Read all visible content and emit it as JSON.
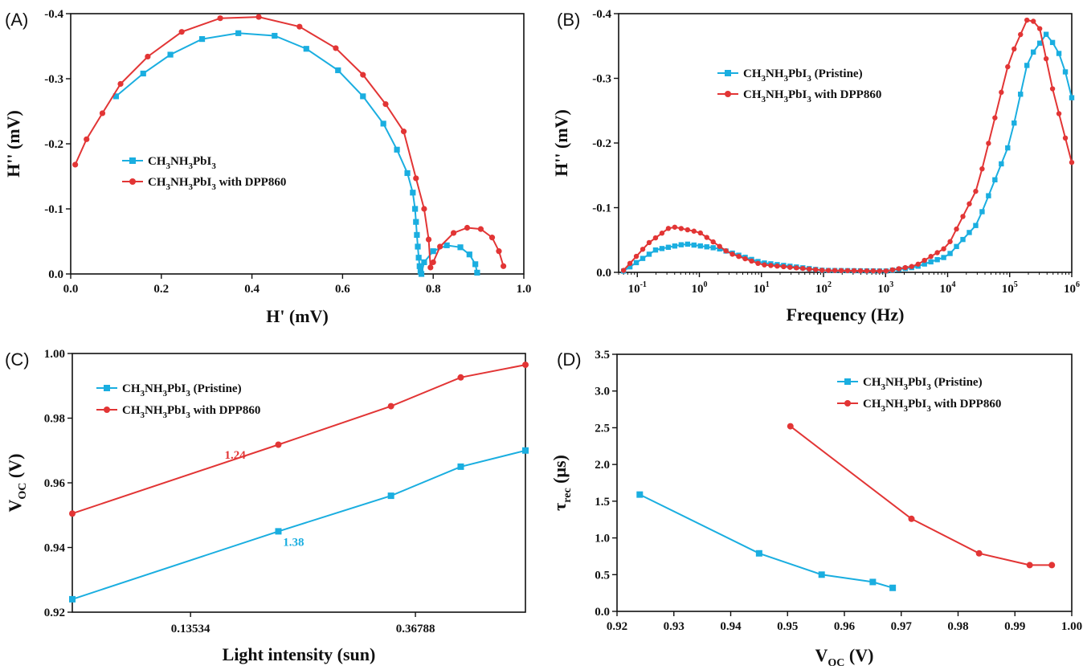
{
  "colors": {
    "pristine": "#1aaee0",
    "dpp": "#e23535"
  },
  "chart_data": [
    {
      "id": "A",
      "panel_label": "(A)",
      "type": "scatter",
      "xlabel": "H' (mV)",
      "ylabel": "H'' (mV)",
      "xlim": [
        0,
        1.0
      ],
      "ylim": [
        0,
        -0.4
      ],
      "xticks": [
        "0.0",
        "0.2",
        "0.4",
        "0.6",
        "0.8",
        "1.0"
      ],
      "yticks": [
        "0.0",
        "-0.1",
        "-0.2",
        "-0.3",
        "-0.4"
      ],
      "legend_position": "center-left",
      "series": [
        {
          "name": "CH3NH3PbI3",
          "legend_main": "CH",
          "legend_parts": [
            [
              "3",
              "NH"
            ],
            [
              "3",
              "PbI"
            ],
            [
              "3",
              ""
            ]
          ],
          "color": "#1aaee0",
          "marker": "square",
          "x": [
            0.1,
            0.16,
            0.22,
            0.29,
            0.37,
            0.45,
            0.52,
            0.59,
            0.645,
            0.69,
            0.72,
            0.743,
            0.755,
            0.76,
            0.762,
            0.764,
            0.766,
            0.768,
            0.77,
            0.772,
            0.774,
            0.78,
            0.8,
            0.83,
            0.86,
            0.88,
            0.893,
            0.897
          ],
          "y": [
            -0.273,
            -0.308,
            -0.337,
            -0.361,
            -0.37,
            -0.366,
            -0.346,
            -0.313,
            -0.273,
            -0.231,
            -0.191,
            -0.155,
            -0.125,
            -0.1,
            -0.08,
            -0.06,
            -0.042,
            -0.025,
            -0.012,
            -0.004,
            0.0,
            -0.018,
            -0.035,
            -0.044,
            -0.041,
            -0.03,
            -0.015,
            -0.002
          ]
        },
        {
          "name": "CH3NH3PbI3 with DPP860",
          "legend_main": "CH",
          "legend_parts": [
            [
              "3",
              "NH"
            ],
            [
              "3",
              "PbI"
            ],
            [
              "3",
              " with DPP860"
            ]
          ],
          "color": "#e23535",
          "marker": "circle",
          "x": [
            0.01,
            0.035,
            0.07,
            0.11,
            0.17,
            0.245,
            0.33,
            0.415,
            0.505,
            0.585,
            0.645,
            0.695,
            0.735,
            0.762,
            0.78,
            0.79,
            0.794,
            0.8,
            0.815,
            0.845,
            0.875,
            0.905,
            0.93,
            0.945,
            0.955
          ],
          "y": [
            -0.168,
            -0.207,
            -0.247,
            -0.292,
            -0.334,
            -0.372,
            -0.393,
            -0.395,
            -0.38,
            -0.347,
            -0.306,
            -0.261,
            -0.219,
            -0.147,
            -0.1,
            -0.053,
            -0.01,
            -0.018,
            -0.042,
            -0.063,
            -0.071,
            -0.069,
            -0.056,
            -0.035,
            -0.012
          ]
        }
      ]
    },
    {
      "id": "B",
      "panel_label": "(B)",
      "type": "line",
      "xlabel": "Frequency (Hz)",
      "ylabel": "H'' (mV)",
      "xscale": "log",
      "xlim": [
        0.05,
        1000000
      ],
      "ylim": [
        0,
        -0.4
      ],
      "xticks": [
        {
          "base": "10",
          "exp": "-1"
        },
        {
          "base": "10",
          "exp": "0"
        },
        {
          "base": "10",
          "exp": "1"
        },
        {
          "base": "10",
          "exp": "2"
        },
        {
          "base": "10",
          "exp": "3"
        },
        {
          "base": "10",
          "exp": "4"
        },
        {
          "base": "10",
          "exp": "5"
        },
        {
          "base": "10",
          "exp": "6"
        }
      ],
      "yticks": [
        "0.0",
        "-0.1",
        "-0.2",
        "-0.3",
        "-0.4"
      ],
      "legend_position": "top-center",
      "series": [
        {
          "name": "CH3NH3PbI3 (Pristine)",
          "legend_main": "CH",
          "legend_parts": [
            [
              "3",
              "NH"
            ],
            [
              "3",
              "PbI"
            ],
            [
              "3",
              " (Pristine)"
            ]
          ],
          "color": "#1aaee0",
          "marker": "square",
          "x": [
            0.06,
            0.2,
            0.6,
            2,
            10,
            100,
            1000,
            3000,
            10000,
            30000,
            100000,
            200000,
            400000,
            700000,
            1000000
          ],
          "y": [
            -0.002,
            -0.035,
            -0.044,
            -0.037,
            -0.015,
            -0.003,
            -0.002,
            -0.008,
            -0.025,
            -0.075,
            -0.2,
            -0.33,
            -0.37,
            -0.33,
            -0.27
          ]
        },
        {
          "name": "CH3NH3PbI3 with DPP860",
          "legend_main": "CH",
          "legend_parts": [
            [
              "3",
              "NH"
            ],
            [
              "3",
              "PbI"
            ],
            [
              "3",
              " with DPP860"
            ]
          ],
          "color": "#e23535",
          "marker": "circle",
          "x": [
            0.06,
            0.15,
            0.35,
            1,
            3,
            10,
            100,
            1000,
            3000,
            10000,
            30000,
            100000,
            200000,
            300000,
            500000,
            1000000
          ],
          "y": [
            -0.003,
            -0.045,
            -0.071,
            -0.062,
            -0.03,
            -0.012,
            -0.003,
            -0.002,
            -0.01,
            -0.04,
            -0.13,
            -0.33,
            -0.395,
            -0.38,
            -0.28,
            -0.17
          ]
        }
      ]
    },
    {
      "id": "C",
      "panel_label": "(C)",
      "type": "line",
      "xlabel": "Light intensity (sun)",
      "ylabel_main": "V",
      "ylabel_sub": "OC",
      "ylabel_rest": " (V)",
      "xscale": "log",
      "xlim": [
        0.08,
        0.6
      ],
      "ylim": [
        0.92,
        1.0
      ],
      "xticks": [
        {
          "value": 0.13534,
          "label": "0.13534"
        },
        {
          "value": 0.36788,
          "label": "0.36788"
        }
      ],
      "yticks": [
        "0.92",
        "0.94",
        "0.96",
        "0.98",
        "1.00"
      ],
      "legend_position": "top-left",
      "annotations": [
        {
          "text": "1.24",
          "x": 0.165,
          "y": 0.9675,
          "color": "#e23535"
        },
        {
          "text": "1.38",
          "x": 0.214,
          "y": 0.9405,
          "color": "#1aaee0"
        }
      ],
      "series": [
        {
          "name": "CH3NH3PbI3  (Pristine)",
          "legend_main": "CH",
          "legend_parts": [
            [
              "3",
              "NH"
            ],
            [
              "3",
              "PbI"
            ],
            [
              "3",
              "  (Pristine)"
            ]
          ],
          "color": "#1aaee0",
          "marker": "square",
          "x": [
            0.08,
            0.2,
            0.33,
            0.45,
            0.6
          ],
          "y": [
            0.924,
            0.945,
            0.956,
            0.965,
            0.97
          ]
        },
        {
          "name": "CH3NH3PbI3 with DPP860",
          "legend_main": "CH",
          "legend_parts": [
            [
              "3",
              "NH"
            ],
            [
              "3",
              "PbI"
            ],
            [
              "3",
              " with DPP860"
            ]
          ],
          "color": "#e23535",
          "marker": "circle",
          "x": [
            0.08,
            0.2,
            0.33,
            0.45,
            0.6
          ],
          "y": [
            0.9505,
            0.9718,
            0.9837,
            0.9926,
            0.9965
          ]
        }
      ]
    },
    {
      "id": "D",
      "panel_label": "(D)",
      "type": "line",
      "xlabel_main": "V",
      "xlabel_sub": "OC",
      "xlabel_rest": " (V)",
      "ylabel_main": "τ",
      "ylabel_sub": "rec",
      "ylabel_rest": " (μs)",
      "xlim": [
        0.92,
        1.0
      ],
      "ylim": [
        0.0,
        3.5
      ],
      "xticks": [
        "0.92",
        "0.93",
        "0.94",
        "0.95",
        "0.96",
        "0.97",
        "0.98",
        "0.99",
        "1.00"
      ],
      "yticks": [
        "0.0",
        "0.5",
        "1.0",
        "1.5",
        "2.0",
        "2.5",
        "3.0",
        "3.5"
      ],
      "legend_position": "top-right",
      "series": [
        {
          "name": "CH3NH3PbI3 (Pristine)",
          "legend_main": "CH",
          "legend_parts": [
            [
              "3",
              "NH"
            ],
            [
              "3",
              "PbI"
            ],
            [
              "3",
              " (Pristine)"
            ]
          ],
          "color": "#1aaee0",
          "marker": "square",
          "x": [
            0.924,
            0.945,
            0.956,
            0.965,
            0.9685
          ],
          "y": [
            1.59,
            0.79,
            0.5,
            0.4,
            0.32
          ]
        },
        {
          "name": "CH3NH3PbI3 with DPP860",
          "legend_main": "CH",
          "legend_parts": [
            [
              "3",
              "NH"
            ],
            [
              "3",
              "PbI"
            ],
            [
              "3",
              " with DPP860"
            ]
          ],
          "color": "#e23535",
          "marker": "circle",
          "x": [
            0.9505,
            0.9718,
            0.9837,
            0.9926,
            0.9965
          ],
          "y": [
            2.52,
            1.26,
            0.79,
            0.63,
            0.63
          ]
        }
      ]
    }
  ]
}
